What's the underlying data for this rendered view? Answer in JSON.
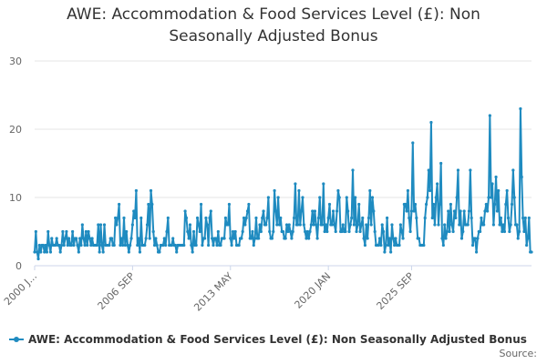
{
  "chart_data": {
    "type": "line",
    "title_lines": [
      "AWE: Accommodation & Food Services Level (£): Non",
      "Seasonally Adjusted Bonus"
    ],
    "xlabel": "",
    "ylabel": "",
    "ylim": [
      0,
      30
    ],
    "y_ticks": [
      0,
      10,
      20,
      30
    ],
    "x_ticks": [
      {
        "label": "2000 J...",
        "index": 0
      },
      {
        "label": "2006 SEP",
        "index": 80
      },
      {
        "label": "2013 MAY",
        "index": 160
      },
      {
        "label": "2020 JAN",
        "index": 240
      },
      {
        "label": "2025 SEP",
        "index": 308
      }
    ],
    "grid": true,
    "legend_position": "bottom-left",
    "series": [
      {
        "name": "AWE: Accommodation & Food Services Level (£): Non Seasonally Adjusted Bonus",
        "color": "#1f8bc0",
        "values": [
          2,
          5,
          2,
          1,
          3,
          2,
          3,
          3,
          2,
          3,
          2,
          5,
          3,
          2,
          4,
          3,
          3,
          3,
          4,
          3,
          3,
          2,
          3,
          5,
          3,
          4,
          5,
          3,
          4,
          3,
          3,
          5,
          3,
          4,
          4,
          3,
          2,
          4,
          3,
          6,
          4,
          3,
          5,
          3,
          5,
          4,
          3,
          4,
          3,
          3,
          3,
          3,
          6,
          2,
          6,
          3,
          2,
          6,
          3,
          3,
          3,
          3,
          4,
          4,
          3,
          3,
          7,
          6,
          7,
          9,
          3,
          4,
          3,
          7,
          3,
          5,
          3,
          2,
          3,
          4,
          6,
          8,
          7,
          11,
          3,
          4,
          2,
          7,
          3,
          3,
          3,
          4,
          6,
          9,
          4,
          11,
          9,
          5,
          3,
          4,
          3,
          2,
          2,
          3,
          3,
          3,
          4,
          3,
          5,
          7,
          3,
          3,
          3,
          4,
          3,
          3,
          2,
          3,
          3,
          3,
          3,
          3,
          3,
          8,
          7,
          5,
          4,
          6,
          3,
          2,
          5,
          3,
          3,
          7,
          6,
          5,
          9,
          3,
          4,
          4,
          7,
          6,
          3,
          7,
          8,
          4,
          3,
          4,
          4,
          3,
          5,
          3,
          3,
          4,
          4,
          4,
          7,
          6,
          6,
          9,
          4,
          3,
          5,
          4,
          5,
          3,
          3,
          3,
          4,
          4,
          5,
          7,
          6,
          7,
          8,
          9,
          4,
          4,
          5,
          3,
          4,
          7,
          4,
          4,
          6,
          5,
          7,
          8,
          6,
          6,
          7,
          10,
          5,
          4,
          4,
          5,
          11,
          8,
          6,
          10,
          6,
          7,
          5,
          5,
          4,
          4,
          6,
          5,
          6,
          5,
          4,
          5,
          7,
          12,
          6,
          6,
          11,
          6,
          8,
          10,
          6,
          5,
          4,
          5,
          4,
          5,
          6,
          8,
          6,
          8,
          6,
          4,
          7,
          10,
          6,
          6,
          12,
          5,
          6,
          5,
          7,
          9,
          6,
          6,
          8,
          6,
          5,
          8,
          11,
          10,
          5,
          5,
          6,
          5,
          5,
          10,
          8,
          5,
          6,
          7,
          14,
          6,
          10,
          5,
          6,
          9,
          5,
          6,
          7,
          4,
          3,
          6,
          4,
          7,
          11,
          6,
          10,
          8,
          5,
          3,
          3,
          3,
          4,
          3,
          6,
          5,
          2,
          3,
          7,
          3,
          4,
          2,
          6,
          4,
          3,
          4,
          3,
          3,
          3,
          6,
          5,
          4,
          9,
          9,
          8,
          11,
          7,
          5,
          8,
          18,
          8,
          9,
          7,
          4,
          4,
          3,
          3,
          3,
          3,
          7,
          9,
          10,
          14,
          11,
          21,
          7,
          9,
          6,
          10,
          12,
          6,
          9,
          15,
          4,
          3,
          6,
          4,
          5,
          8,
          5,
          9,
          6,
          5,
          8,
          7,
          10,
          14,
          6,
          8,
          4,
          5,
          8,
          6,
          6,
          6,
          8,
          14,
          7,
          3,
          4,
          4,
          2,
          4,
          5,
          5,
          7,
          6,
          6,
          8,
          9,
          8,
          10,
          22,
          10,
          12,
          6,
          9,
          13,
          8,
          11,
          6,
          7,
          5,
          6,
          5,
          9,
          11,
          7,
          5,
          6,
          9,
          14,
          10,
          6,
          6,
          4,
          5,
          23,
          13,
          7,
          5,
          7,
          3,
          4,
          7,
          2,
          2
        ]
      }
    ],
    "source_label": "Source:"
  }
}
